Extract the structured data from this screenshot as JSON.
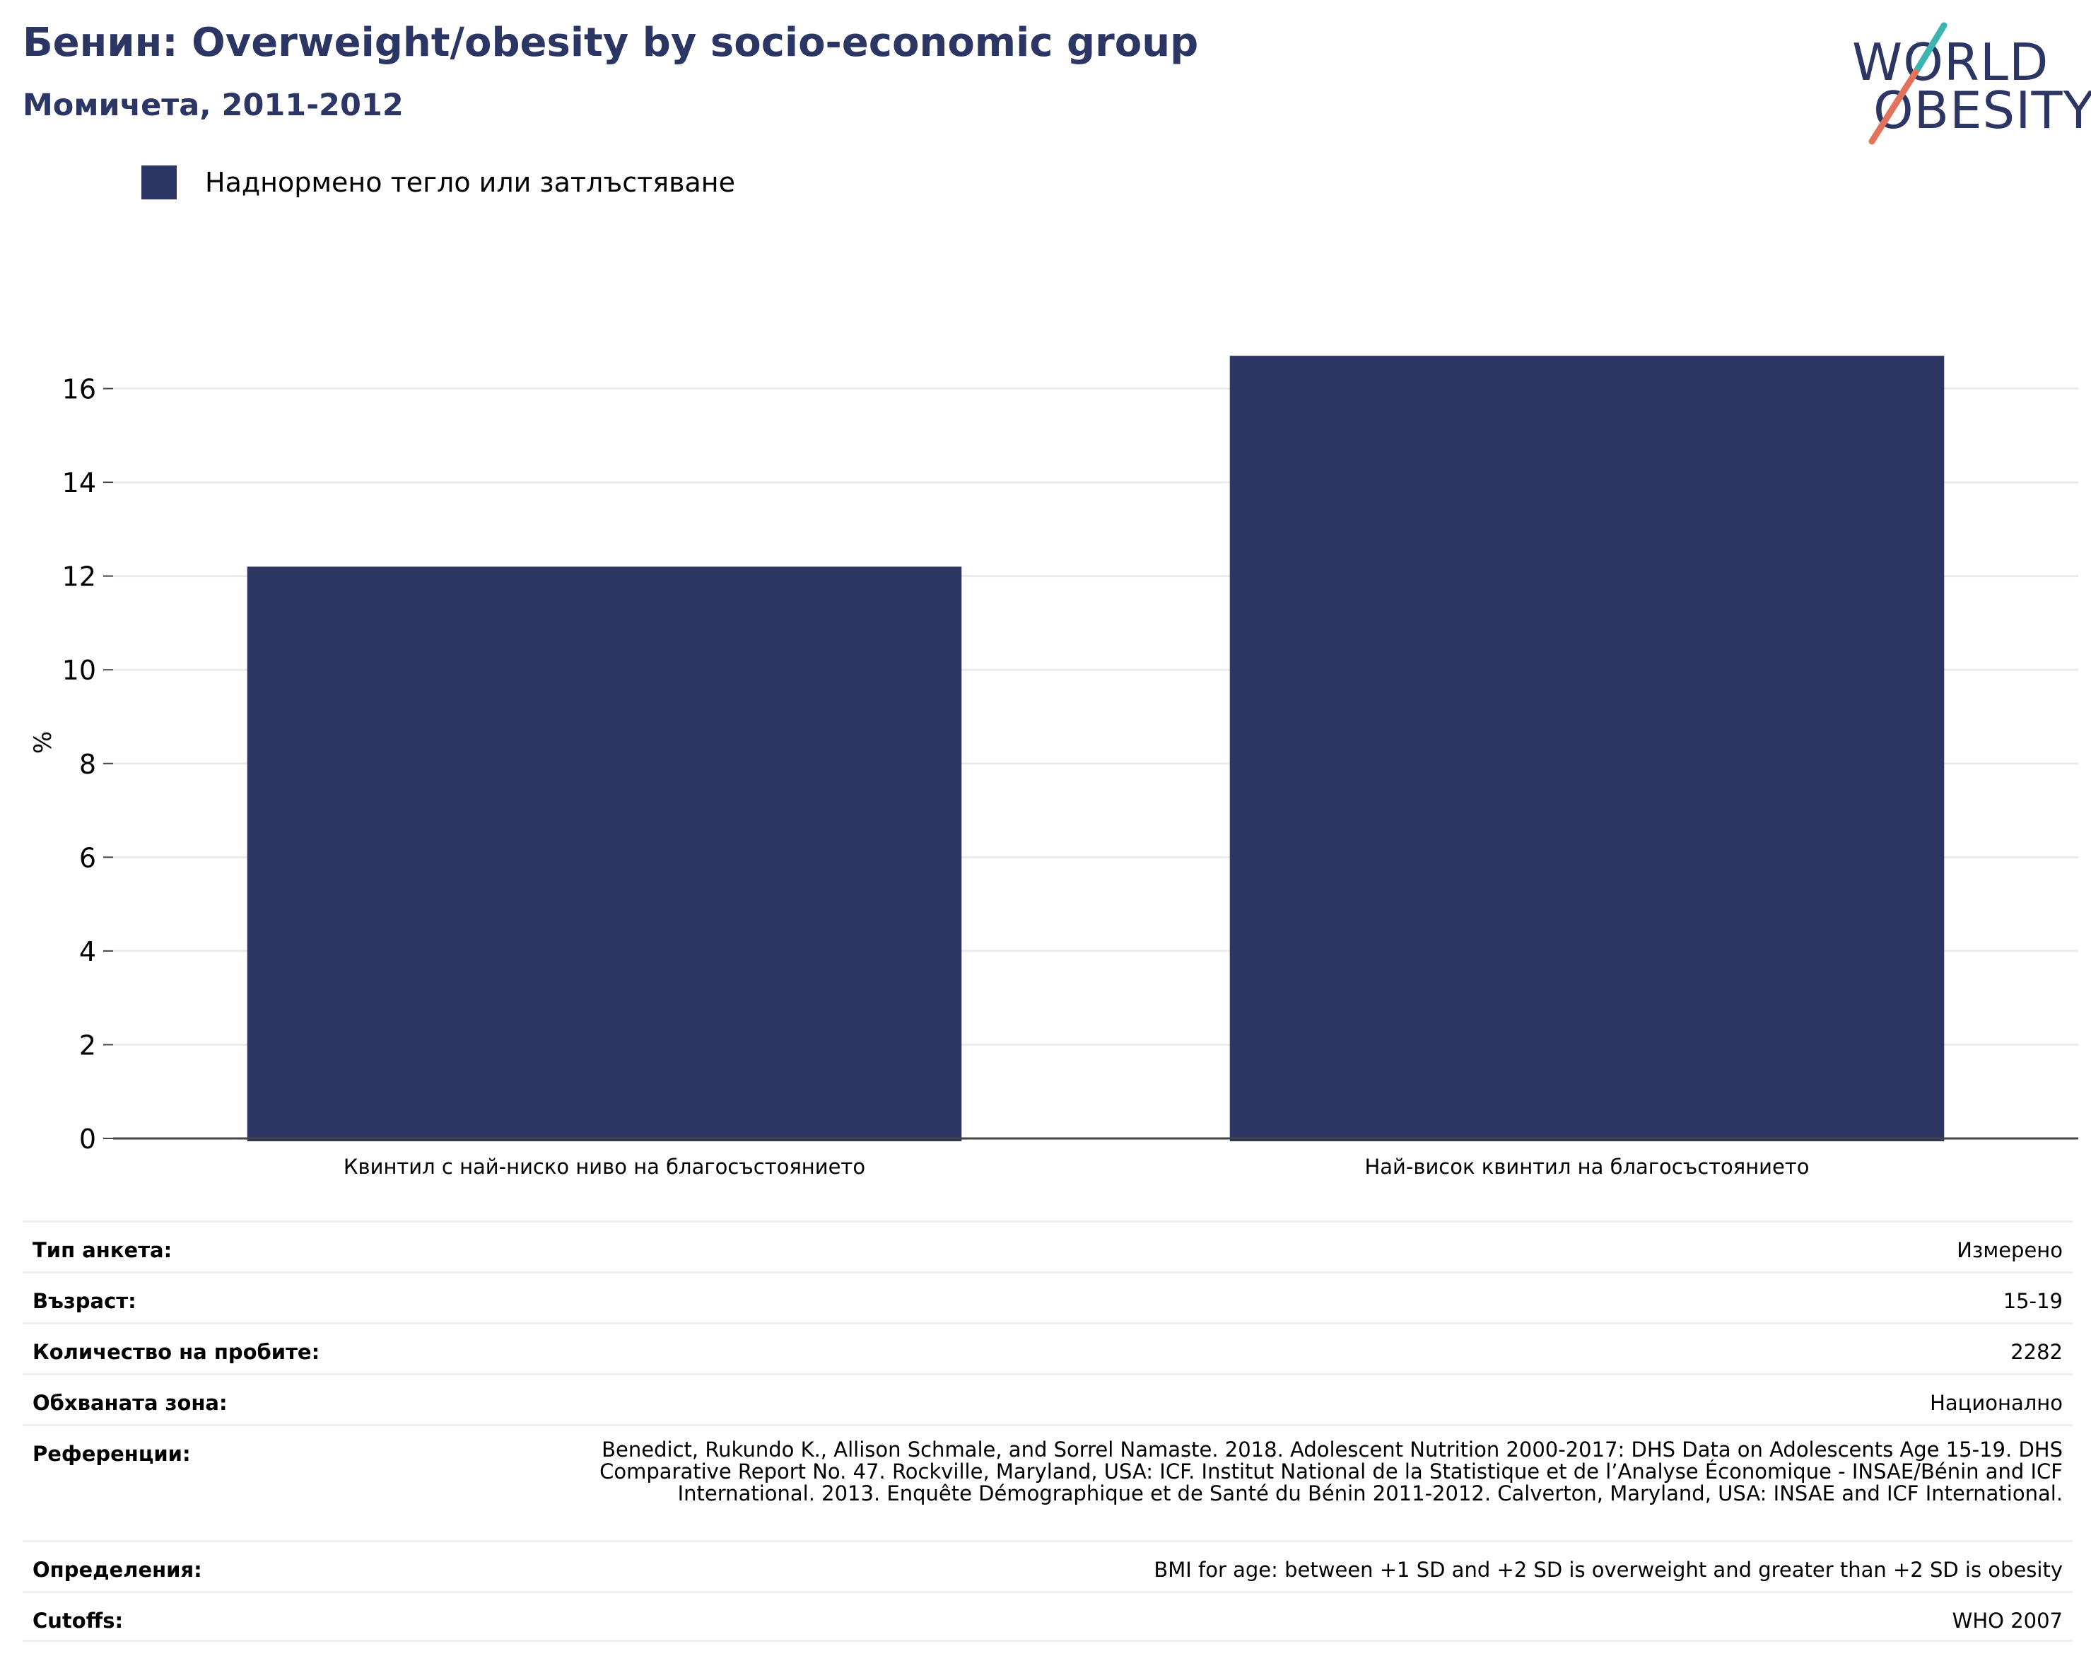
{
  "header": {
    "title": "Бенин: Overweight/obesity by socio-economic group",
    "subtitle": "Момичета, 2011-2012"
  },
  "logo": {
    "line1": "WORLD",
    "line2": "OBESITY",
    "colors": {
      "text": "#2b3664",
      "slash_top": "#3ab5b0",
      "slash_bottom": "#e2725b"
    }
  },
  "legend": {
    "items": [
      {
        "label": "Наднормено тегло или затлъстяване",
        "color": "#2b3664"
      }
    ]
  },
  "chart_data": {
    "type": "bar",
    "categories": [
      "Квинтил с най-ниско ниво на благосъстоянието",
      "Най-висок квинтил на благосъстоянието"
    ],
    "series": [
      {
        "name": "Наднормено тегло или затлъстяване",
        "values": [
          12.2,
          16.7
        ],
        "color": "#2b3664"
      }
    ],
    "ylabel": "%",
    "ylim": [
      0,
      17.2
    ],
    "yticks": [
      0,
      2,
      4,
      6,
      8,
      10,
      12,
      14,
      16
    ],
    "grid": true,
    "legend_position": "top-left"
  },
  "meta": {
    "rows": [
      {
        "key": "Тип анкета:",
        "value": "Измерено"
      },
      {
        "key": "Възраст:",
        "value": "15-19"
      },
      {
        "key": "Количество на пробите:",
        "value": "2282"
      },
      {
        "key": "Обхваната зона:",
        "value": "Национално"
      },
      {
        "key": "Референции:",
        "value": "Benedict, Rukundo K., Allison Schmale, and Sorrel Namaste. 2018. Adolescent Nutrition 2000-2017: DHS Data on Adolescents Age 15-19. DHS Comparative Report No. 47. Rockville, Maryland, USA: ICF. Institut National de la Statistique et de l’Analyse Économique - INSAE/Bénin and ICF International. 2013. Enquête Démographique et de Santé du Bénin 2011-2012. Calverton, Maryland, USA: INSAE and ICF International."
      },
      {
        "key": "Определения:",
        "value": "BMI for age: between +1 SD and +2 SD is overweight and greater than +2 SD is obesity"
      },
      {
        "key": "Cutoffs:",
        "value": "WHO 2007"
      }
    ]
  }
}
